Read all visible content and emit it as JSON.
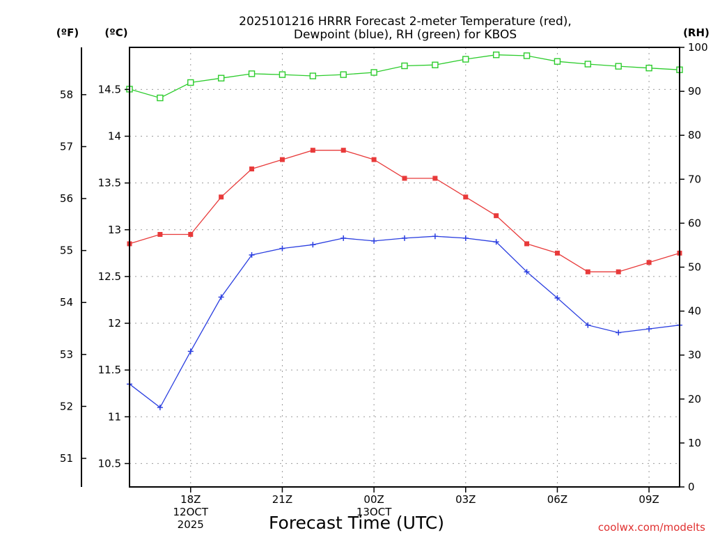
{
  "chart_data": {
    "type": "line",
    "title_lines": [
      "2025101216 HRRR Forecast 2-meter Temperature (red),",
      "Dewpoint (blue), RH (green) for KBOS"
    ],
    "x": [
      0,
      1,
      2,
      3,
      4,
      5,
      6,
      7,
      8,
      9,
      10,
      11,
      12,
      13,
      14,
      15,
      16,
      17,
      18
    ],
    "x_ticks": [
      {
        "x": 2,
        "lines": [
          "18Z",
          "12OCT",
          "2025"
        ]
      },
      {
        "x": 5,
        "lines": [
          "21Z"
        ]
      },
      {
        "x": 8,
        "lines": [
          "00Z",
          "13OCT"
        ]
      },
      {
        "x": 11,
        "lines": [
          "03Z"
        ]
      },
      {
        "x": 14,
        "lines": [
          "06Z"
        ]
      },
      {
        "x": 17,
        "lines": [
          "09Z"
        ]
      }
    ],
    "xlim": [
      0,
      18
    ],
    "xlabel": "Forecast Time (UTC)",
    "axes": {
      "fahrenheit": {
        "unit_label": "(ºF)",
        "ticks": [
          51,
          52,
          53,
          54,
          55,
          56,
          57,
          58
        ]
      },
      "celsius": {
        "unit_label": "(ºC)",
        "ylim": [
          10.25,
          14.95
        ],
        "ticks": [
          10.5,
          11,
          11.5,
          12,
          12.5,
          13,
          13.5,
          14,
          14.5
        ],
        "tick_labels": [
          "10.5",
          "11",
          "11.5",
          "12",
          "12.5",
          "13",
          "13.5",
          "14",
          "14.5"
        ]
      },
      "rh": {
        "unit_label": "(RH)",
        "ylim": [
          0,
          100
        ],
        "ticks": [
          0,
          10,
          20,
          30,
          40,
          50,
          60,
          70,
          80,
          90,
          100
        ]
      }
    },
    "grid": true,
    "series": [
      {
        "name": "2-meter Temperature",
        "axis": "celsius",
        "color": "#e83a3a",
        "marker": "filled-square",
        "values": [
          12.85,
          12.95,
          12.95,
          13.35,
          13.65,
          13.75,
          13.85,
          13.85,
          13.75,
          13.55,
          13.55,
          13.35,
          13.15,
          12.85,
          12.75,
          12.55,
          12.55,
          12.65,
          12.75
        ]
      },
      {
        "name": "Dewpoint",
        "axis": "celsius",
        "color": "#2a3ee0",
        "marker": "plus",
        "values": [
          11.35,
          11.1,
          11.7,
          12.28,
          12.73,
          12.8,
          12.84,
          12.91,
          12.88,
          12.91,
          12.93,
          12.91,
          12.87,
          12.55,
          12.27,
          11.98,
          11.9,
          11.94,
          11.98
        ]
      },
      {
        "name": "RH",
        "axis": "rh",
        "color": "#2ccc2c",
        "marker": "open-square",
        "values": [
          90.5,
          88.5,
          92,
          93,
          94,
          93.8,
          93.5,
          93.8,
          94.3,
          95.8,
          96,
          97.3,
          98.3,
          98.1,
          96.8,
          96.2,
          95.7,
          95.3,
          94.9
        ]
      }
    ]
  },
  "credit": "coolwx.com/modelts"
}
